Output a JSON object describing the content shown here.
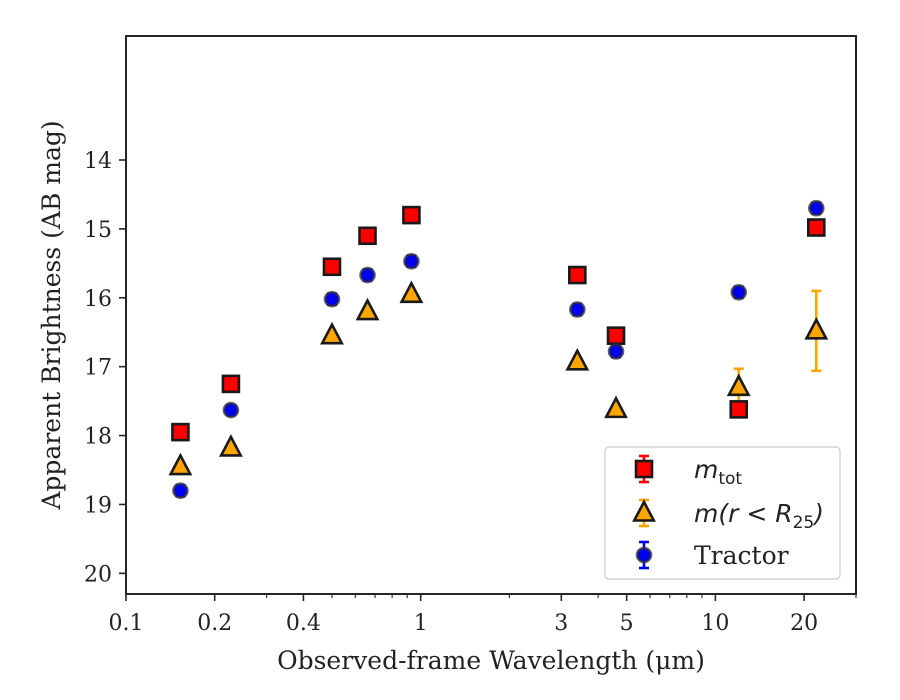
{
  "chart_data": {
    "type": "scatter",
    "xlabel": "Observed-frame Wavelength (μm)",
    "ylabel": "Apparent Brightness (AB mag)",
    "x_scale": "log",
    "xlim": [
      0.1,
      30
    ],
    "ylim": [
      20.3,
      12.2
    ],
    "y_inverted": true,
    "x_ticks": [
      0.1,
      0.2,
      0.4,
      1,
      3,
      5,
      10,
      20
    ],
    "x_tick_labels": [
      "0.1",
      "0.2",
      "0.4",
      "1",
      "3",
      "5",
      "10",
      "20"
    ],
    "y_ticks": [
      14,
      15,
      16,
      17,
      18,
      19,
      20
    ],
    "y_tick_labels": [
      "14",
      "15",
      "16",
      "17",
      "18",
      "19",
      "20"
    ],
    "legend": {
      "placement": "lower-right",
      "entries": [
        {
          "label_main": "m",
          "label_sub": "tot"
        },
        {
          "label_main": "m(r < R",
          "label_sub": "25",
          "label_tail": ")"
        },
        {
          "label_main": "Tractor"
        }
      ]
    },
    "series": [
      {
        "marker": "square",
        "color": "#ff0000",
        "edge_color": "#1a1a1a",
        "x": [
          0.153,
          0.227,
          0.5,
          0.66,
          0.93,
          3.4,
          4.6,
          12.0,
          22.0
        ],
        "y": [
          17.95,
          17.25,
          15.55,
          15.1,
          14.8,
          15.67,
          16.55,
          17.62,
          14.98
        ],
        "err": [
          0.03,
          0.03,
          0.02,
          0.02,
          0.02,
          0.02,
          0.03,
          0.05,
          0.04
        ]
      },
      {
        "marker": "triangle",
        "color": "#ffa500",
        "edge_color": "#1a1a1a",
        "x": [
          0.153,
          0.227,
          0.5,
          0.66,
          0.93,
          3.4,
          4.6,
          12.0,
          22.0
        ],
        "y": [
          18.45,
          18.18,
          16.55,
          16.2,
          15.95,
          16.93,
          17.62,
          17.3,
          16.48
        ],
        "err": [
          0.02,
          0.02,
          0.02,
          0.02,
          0.02,
          0.02,
          0.03,
          0.27,
          0.58
        ]
      },
      {
        "marker": "circle",
        "color": "#0000ee",
        "edge_color": "#333333",
        "x": [
          0.153,
          0.227,
          0.5,
          0.66,
          0.93,
          3.4,
          4.6,
          12.0,
          22.0
        ],
        "y": [
          18.8,
          17.63,
          16.02,
          15.67,
          15.47,
          16.17,
          16.78,
          15.92,
          14.7
        ],
        "err": [
          0.08,
          0.07,
          0.08,
          0.08,
          0.08,
          0.08,
          0.08,
          0.08,
          0.08
        ]
      }
    ]
  }
}
